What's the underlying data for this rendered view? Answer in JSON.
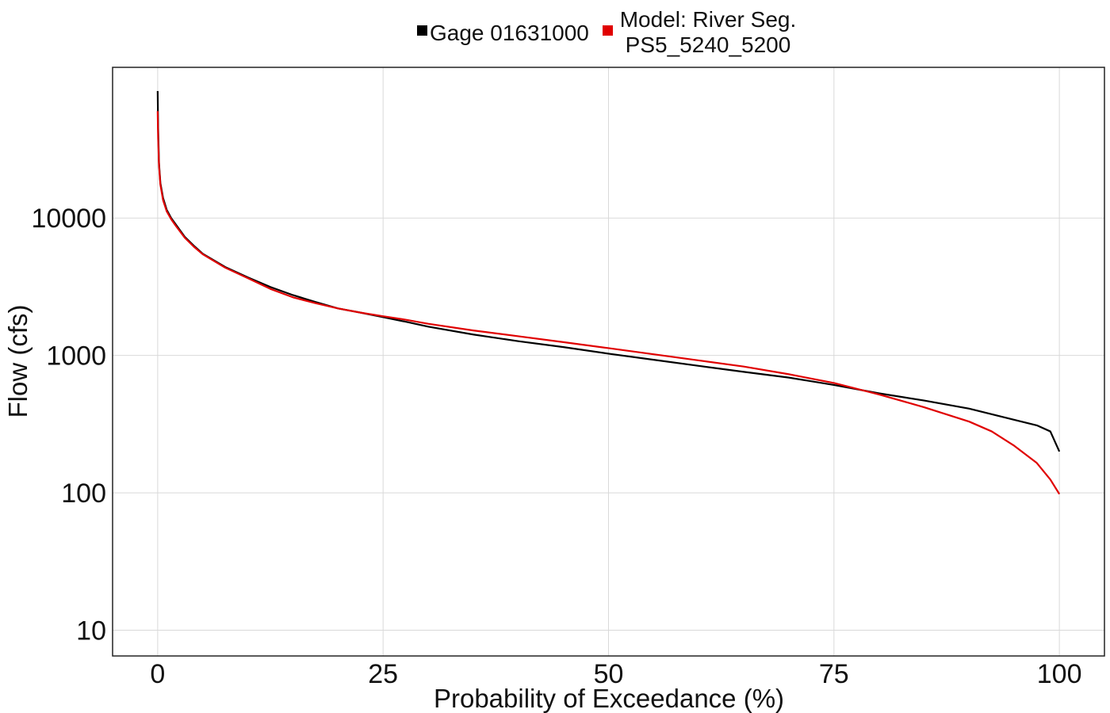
{
  "chart_data": {
    "type": "line",
    "title": "",
    "xlabel": "Probability of Exceedance (%)",
    "ylabel": "Flow (cfs)",
    "xlim": [
      -5,
      105
    ],
    "ylim": [
      6.5,
      125000
    ],
    "y_scale": "log",
    "x_ticks": [
      0,
      25,
      50,
      75,
      100
    ],
    "x_tick_labels": [
      "0",
      "25",
      "50",
      "75",
      "100"
    ],
    "y_ticks": [
      10,
      100,
      1000,
      10000
    ],
    "y_tick_labels": [
      "10",
      "100",
      "1000",
      "10000"
    ],
    "grid": true,
    "legend_position": "top",
    "series": [
      {
        "name": "Gage 01631000",
        "color": "#000000",
        "points": [
          [
            0,
            84000
          ],
          [
            0.05,
            45000
          ],
          [
            0.15,
            25000
          ],
          [
            0.3,
            18000
          ],
          [
            0.6,
            14000
          ],
          [
            1,
            11500
          ],
          [
            1.5,
            10000
          ],
          [
            2,
            9000
          ],
          [
            3,
            7300
          ],
          [
            4,
            6300
          ],
          [
            5,
            5500
          ],
          [
            7.5,
            4400
          ],
          [
            10,
            3700
          ],
          [
            12.5,
            3150
          ],
          [
            15,
            2750
          ],
          [
            17.5,
            2450
          ],
          [
            20,
            2200
          ],
          [
            22.5,
            2050
          ],
          [
            25,
            1900
          ],
          [
            27.5,
            1760
          ],
          [
            30,
            1620
          ],
          [
            35,
            1420
          ],
          [
            40,
            1270
          ],
          [
            45,
            1150
          ],
          [
            50,
            1030
          ],
          [
            55,
            930
          ],
          [
            60,
            840
          ],
          [
            65,
            760
          ],
          [
            70,
            690
          ],
          [
            75,
            610
          ],
          [
            80,
            530
          ],
          [
            85,
            470
          ],
          [
            90,
            410
          ],
          [
            95,
            340
          ],
          [
            97.5,
            310
          ],
          [
            99,
            280
          ],
          [
            100,
            200
          ]
        ]
      },
      {
        "name": "Model: River Seg. PS5_5240_5200",
        "color": "#e00000",
        "points": [
          [
            0,
            60000
          ],
          [
            0.05,
            38000
          ],
          [
            0.15,
            24000
          ],
          [
            0.3,
            17500
          ],
          [
            0.6,
            13500
          ],
          [
            1,
            11200
          ],
          [
            1.5,
            9800
          ],
          [
            2,
            8800
          ],
          [
            3,
            7200
          ],
          [
            4,
            6200
          ],
          [
            5,
            5450
          ],
          [
            7.5,
            4350
          ],
          [
            10,
            3650
          ],
          [
            12.5,
            3050
          ],
          [
            15,
            2650
          ],
          [
            17.5,
            2400
          ],
          [
            20,
            2200
          ],
          [
            22.5,
            2050
          ],
          [
            25,
            1930
          ],
          [
            27.5,
            1820
          ],
          [
            30,
            1700
          ],
          [
            35,
            1520
          ],
          [
            40,
            1380
          ],
          [
            45,
            1250
          ],
          [
            50,
            1130
          ],
          [
            55,
            1020
          ],
          [
            60,
            920
          ],
          [
            65,
            830
          ],
          [
            70,
            730
          ],
          [
            75,
            630
          ],
          [
            80,
            520
          ],
          [
            85,
            420
          ],
          [
            90,
            330
          ],
          [
            92.5,
            280
          ],
          [
            95,
            220
          ],
          [
            97.5,
            165
          ],
          [
            99,
            125
          ],
          [
            100,
            98
          ]
        ]
      }
    ]
  }
}
